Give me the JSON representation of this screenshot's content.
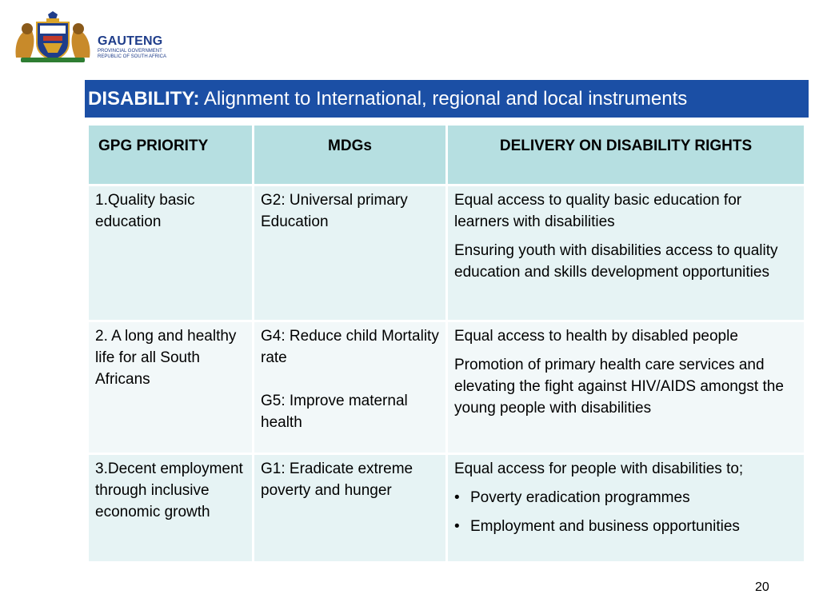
{
  "logo": {
    "name": "GAUTENG",
    "line1": "PROVINCIAL GOVERNMENT",
    "line2": "REPUBLIC OF SOUTH AFRICA"
  },
  "banner": {
    "bold": "DISABILITY:",
    "rest": " Alignment to International, regional and local instruments"
  },
  "table": {
    "headers": [
      "GPG PRIORITY",
      "MDGs",
      "DELIVERY ON DISABILITY RIGHTS"
    ],
    "rows": [
      {
        "priority": "1.Quality basic education",
        "mdg_a": "G2: Universal primary Education",
        "mdg_b": "",
        "delivery_a": "Equal access to quality basic education for learners with disabilities",
        "delivery_b": "Ensuring youth with disabilities access to quality education and skills development opportunities"
      },
      {
        "priority": "2. A long and healthy life for all South Africans",
        "mdg_a": "G4:  Reduce child Mortality  rate",
        "mdg_b": "G5: Improve maternal health",
        "delivery_a": "Equal access to health by disabled people",
        "delivery_b": "Promotion of primary health care services and elevating the fight against HIV/AIDS amongst the young people with disabilities"
      },
      {
        "priority": "3.Decent employment through inclusive economic growth",
        "mdg_a": "G1: Eradicate extreme poverty and hunger",
        "mdg_b": "",
        "delivery_a": "Equal access for people with disabilities to;",
        "bullets": [
          "Poverty eradication programmes",
          "Employment and business opportunities"
        ]
      }
    ]
  },
  "bullet_glyph": "•",
  "page_number": "20",
  "colors": {
    "banner": "#1b4fa5",
    "header_cell": "#b6dfe1",
    "body_cell": "#e6f3f4",
    "logo_text": "#1f3d8a"
  }
}
